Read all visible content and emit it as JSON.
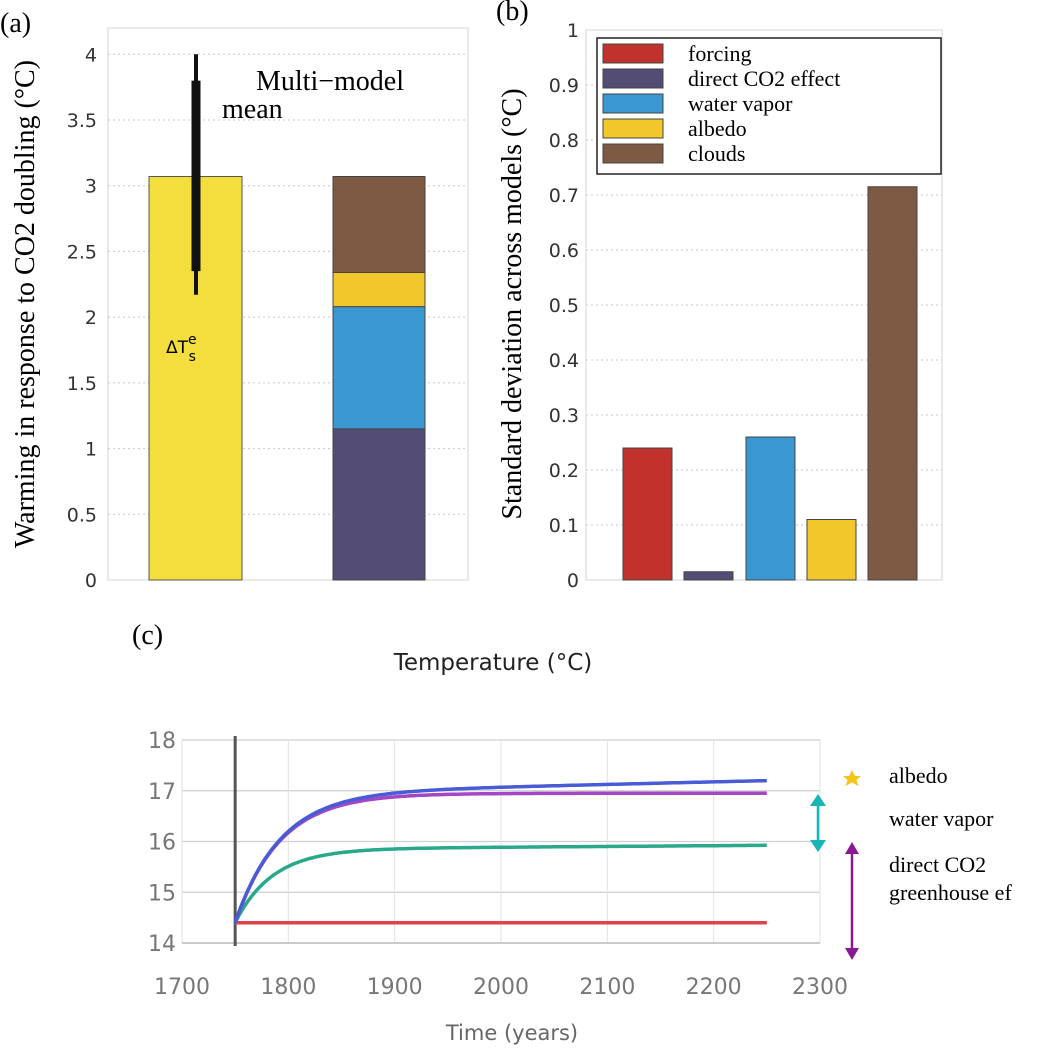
{
  "chart_data": [
    {
      "panel_label": "(a)",
      "type": "bar",
      "ylabel": "Warming in response to CO2 doubling (°C)",
      "ylim": [
        0,
        4.2
      ],
      "yticks": [
        "0",
        "0.5",
        "1",
        "1.5",
        "2",
        "2.5",
        "3",
        "3.5",
        "4"
      ],
      "grid": true,
      "annotation": "Multi−model mean",
      "bar_label": "ΔT",
      "bar_label_sup": "e",
      "bar_label_sub": "s",
      "bars": [
        {
          "total": 3.07,
          "color": "#f3de3e",
          "error_range": [
            2.17,
            4.0
          ],
          "error_thick_range": [
            2.35,
            3.8
          ]
        }
      ],
      "stacked_bar": {
        "segments": [
          {
            "component": "direct CO2 effect",
            "value": 1.15,
            "color": "#534c74"
          },
          {
            "component": "water vapor",
            "value": 0.93,
            "color": "#3a97d2"
          },
          {
            "component": "albedo",
            "value": 0.26,
            "color": "#f1c72c"
          },
          {
            "component": "clouds",
            "value": 0.73,
            "color": "#7e5a45"
          }
        ]
      }
    },
    {
      "panel_label": "(b)",
      "type": "bar",
      "ylabel": "Standard deviation across models (°C)",
      "ylim": [
        0,
        1
      ],
      "yticks": [
        "0",
        "0.1",
        "0.2",
        "0.3",
        "0.4",
        "0.5",
        "0.6",
        "0.7",
        "0.8",
        "0.9",
        "1"
      ],
      "grid": true,
      "legend": "top",
      "series": [
        {
          "name": "forcing",
          "value": 0.24,
          "color": "#c0322b"
        },
        {
          "name": "direct CO2 effect",
          "value": 0.015,
          "color": "#534c74"
        },
        {
          "name": "water vapor",
          "value": 0.26,
          "color": "#3a97d2"
        },
        {
          "name": "albedo",
          "value": 0.11,
          "color": "#f1c72c"
        },
        {
          "name": "clouds",
          "value": 0.715,
          "color": "#7e5a45"
        }
      ]
    },
    {
      "panel_label": "(c)",
      "type": "line",
      "title": "Temperature (°C)",
      "xlabel": "Time (years)",
      "xlim": [
        1700,
        2300
      ],
      "ylim": [
        14,
        18
      ],
      "xticks": [
        "1700",
        "1800",
        "1900",
        "2000",
        "2100",
        "2200",
        "2300"
      ],
      "yticks": [
        "14",
        "15",
        "16",
        "17",
        "18"
      ],
      "grid": true,
      "vline_x": 1750,
      "series": [
        {
          "start": 1750,
          "end": 2250,
          "y0": 14.4,
          "y_eq": 14.4,
          "tau": 40,
          "drift_per_century": 0,
          "color": "#e0424a"
        },
        {
          "start": 1750,
          "end": 2250,
          "y0": 14.4,
          "y_eq": 15.85,
          "tau": 35,
          "drift_per_century": 0.015,
          "color": "#2aa88c"
        },
        {
          "start": 1750,
          "end": 2250,
          "y0": 14.4,
          "y_eq": 16.95,
          "tau": 42,
          "drift_per_century": 0,
          "color": "#a347c6"
        },
        {
          "start": 1750,
          "end": 2250,
          "y0": 14.4,
          "y_eq": 16.95,
          "tau": 42,
          "drift_per_century": 0.05,
          "color": "#4a5bd6"
        }
      ],
      "side_annotations": [
        {
          "text": "albedo",
          "marker": "star",
          "color": "#f5c41a"
        },
        {
          "text": "water vapor",
          "marker": "double-arrow",
          "color": "#17b5b5"
        },
        {
          "text": "direct CO2",
          "marker": "double-arrow",
          "color": "#8a1a93"
        },
        {
          "text": "greenhouse ef",
          "marker": "none",
          "color": "#8a1a93"
        }
      ]
    }
  ]
}
